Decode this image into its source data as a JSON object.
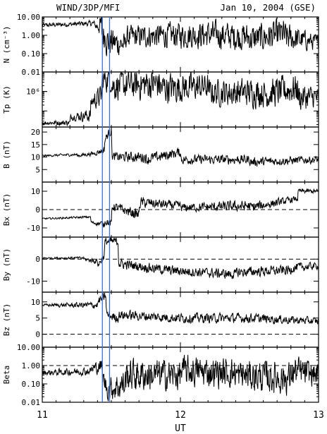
{
  "header": {
    "left": "WIND/3DP/MFI",
    "right": "Jan 10, 2004 (GSE)"
  },
  "chart_data": {
    "type": "line",
    "xlabel": "UT",
    "x_ticks": [
      "11",
      "12",
      "13"
    ],
    "xlim": [
      11,
      13
    ],
    "vertical_markers_hours": [
      11.435,
      11.487
    ],
    "panels": [
      {
        "ylabel": "N (cm⁻³)",
        "scale": "log",
        "ylim": [
          0.01,
          10
        ],
        "ticks": [
          {
            "v": 10,
            "label": "10.00"
          },
          {
            "v": 1,
            "label": "1.00"
          },
          {
            "v": 0.1,
            "label": "0.10"
          },
          {
            "v": 0.01,
            "label": "0.01"
          }
        ],
        "segments": [
          [
            11.0,
            3.5,
            4.5,
            0.15
          ],
          [
            11.38,
            3.0,
            3.5,
            0.2
          ],
          [
            11.43,
            0.8,
            1.5,
            0.9
          ],
          [
            11.46,
            0.5,
            0.3,
            1.2
          ],
          [
            11.6,
            0.8,
            1.0,
            0.8
          ],
          [
            11.9,
            1.0,
            1.1,
            0.9
          ],
          [
            12.2,
            1.1,
            0.8,
            1.0
          ],
          [
            12.5,
            0.6,
            1.2,
            1.0
          ],
          [
            12.75,
            0.8,
            0.4,
            1.1
          ],
          [
            13.0,
            0.3,
            0.3,
            0.5
          ]
        ]
      },
      {
        "ylabel": "Tp (K)",
        "scale": "log",
        "ylim": [
          15000,
          10000000
        ],
        "ticks": [
          {
            "v": 1000000,
            "label": "10⁶"
          }
        ],
        "segments": [
          [
            11.0,
            25000,
            25000,
            0.15
          ],
          [
            11.2,
            50000,
            60000,
            0.2
          ],
          [
            11.35,
            300000,
            600000,
            0.5
          ],
          [
            11.43,
            4000000,
            5000000,
            0.8
          ],
          [
            11.5,
            2000000,
            2500000,
            1.0
          ],
          [
            11.85,
            1500000,
            1800000,
            1.1
          ],
          [
            12.2,
            900000,
            900000,
            0.9
          ],
          [
            12.6,
            700000,
            1500000,
            1.0
          ],
          [
            12.85,
            500000,
            500000,
            1.0
          ],
          [
            13.0,
            250000,
            250000,
            0.7
          ]
        ]
      },
      {
        "ylabel": "B (nT)",
        "scale": "linear",
        "ylim": [
          0,
          22
        ],
        "ticks": [
          {
            "v": 20,
            "label": "20"
          },
          {
            "v": 15,
            "label": "15"
          },
          {
            "v": 10,
            "label": "10"
          },
          {
            "v": 5,
            "label": "5"
          }
        ],
        "segments": [
          [
            11.0,
            10.5,
            11,
            0.5
          ],
          [
            11.25,
            10.5,
            11.5,
            0.8
          ],
          [
            11.38,
            11.5,
            13,
            1.2
          ],
          [
            11.45,
            17,
            21,
            2.0
          ],
          [
            11.5,
            10,
            10,
            2.5
          ],
          [
            11.75,
            9,
            12,
            3.0
          ],
          [
            12.0,
            9,
            9,
            2.5
          ],
          [
            12.5,
            8,
            9,
            2.5
          ],
          [
            13.0,
            10,
            10,
            2.0
          ]
        ]
      },
      {
        "ylabel": "Bx (nT)",
        "scale": "linear",
        "ylim": [
          -15,
          15
        ],
        "dashed": 0,
        "ticks": [
          {
            "v": 10,
            "label": "10"
          },
          {
            "v": 0,
            "label": "0"
          },
          {
            "v": -10,
            "label": "-10"
          }
        ],
        "segments": [
          [
            11.0,
            -5,
            -4,
            0.6
          ],
          [
            11.35,
            -7,
            -8,
            0.8
          ],
          [
            11.45,
            -6,
            -8,
            2.5
          ],
          [
            11.5,
            2,
            -3,
            3.0
          ],
          [
            11.7,
            4,
            2,
            4.0
          ],
          [
            12.0,
            1,
            2,
            3.0
          ],
          [
            12.5,
            1,
            6,
            4.0
          ],
          [
            12.85,
            10,
            10,
            2.0
          ],
          [
            13.0,
            10,
            10,
            1.5
          ]
        ]
      },
      {
        "ylabel": "By (nT)",
        "scale": "linear",
        "ylim": [
          -15,
          10
        ],
        "dashed": 0,
        "ticks": [
          {
            "v": 0,
            "label": "0"
          },
          {
            "v": -10,
            "label": "-10"
          }
        ],
        "segments": [
          [
            11.0,
            0.5,
            0.5,
            0.5
          ],
          [
            11.3,
            0,
            -1,
            0.8
          ],
          [
            11.4,
            -3,
            2,
            2.0
          ],
          [
            11.45,
            8,
            8,
            2.5
          ],
          [
            11.55,
            -2,
            -5,
            3.0
          ],
          [
            11.9,
            -5,
            -7,
            3.0
          ],
          [
            12.4,
            -6,
            -5,
            3.0
          ],
          [
            12.8,
            -4,
            -3,
            3.0
          ],
          [
            13.0,
            -3,
            -3,
            2.0
          ]
        ]
      },
      {
        "ylabel": "Bz (nT)",
        "scale": "linear",
        "ylim": [
          -4,
          13
        ],
        "dashed": 0,
        "ticks": [
          {
            "v": 10,
            "label": "10"
          },
          {
            "v": 5,
            "label": "5"
          },
          {
            "v": 0,
            "label": "0"
          }
        ],
        "segments": [
          [
            11.0,
            9,
            9,
            0.5
          ],
          [
            11.4,
            10,
            12,
            1.5
          ],
          [
            11.46,
            6,
            5,
            2.0
          ],
          [
            11.55,
            6,
            5,
            2.0
          ],
          [
            12.0,
            5,
            5,
            2.0
          ],
          [
            12.5,
            5,
            4,
            2.0
          ],
          [
            13.0,
            4,
            4,
            1.5
          ]
        ]
      },
      {
        "ylabel": "Beta",
        "scale": "log",
        "ylim": [
          0.01,
          10
        ],
        "dashed": 1,
        "ticks": [
          {
            "v": 10,
            "label": "10.00"
          },
          {
            "v": 1,
            "label": "1.00"
          },
          {
            "v": 0.1,
            "label": "0.10"
          },
          {
            "v": 0.01,
            "label": "0.01"
          }
        ],
        "segments": [
          [
            11.0,
            0.4,
            0.5,
            0.2
          ],
          [
            11.35,
            0.6,
            1.0,
            0.3
          ],
          [
            11.43,
            0.3,
            0.05,
            0.6
          ],
          [
            11.47,
            0.05,
            0.1,
            0.8
          ],
          [
            11.6,
            0.3,
            0.3,
            1.2
          ],
          [
            12.0,
            0.5,
            0.4,
            1.1
          ],
          [
            12.4,
            0.3,
            0.2,
            1.1
          ],
          [
            12.8,
            0.5,
            0.3,
            1.2
          ],
          [
            13.0,
            0.05,
            0.05,
            0.8
          ]
        ]
      }
    ]
  }
}
